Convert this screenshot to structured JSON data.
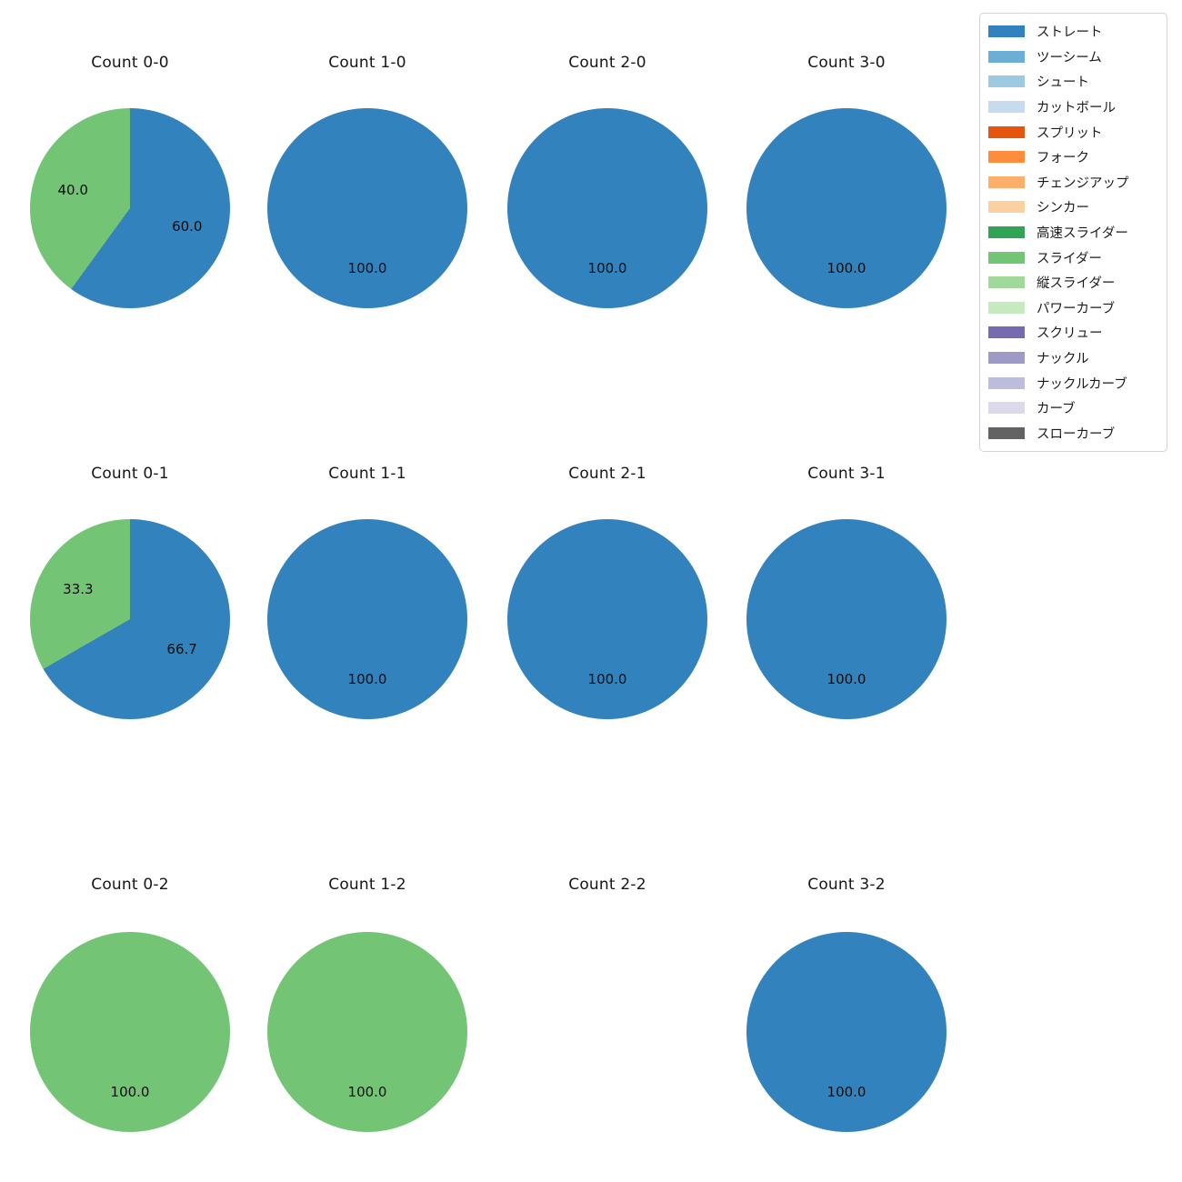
{
  "figure": {
    "background_color": "#ffffff",
    "grid": {
      "columns": 4,
      "rows": 3
    }
  },
  "legend": {
    "position": "upper right",
    "items": [
      {
        "label": "ストレート",
        "color": "#3182bd"
      },
      {
        "label": "ツーシーム",
        "color": "#6baed6"
      },
      {
        "label": "シュート",
        "color": "#9ecae1"
      },
      {
        "label": "カットボール",
        "color": "#c6dbef"
      },
      {
        "label": "スプリット",
        "color": "#e6550d"
      },
      {
        "label": "フォーク",
        "color": "#fd8d3c"
      },
      {
        "label": "チェンジアップ",
        "color": "#fdae6b"
      },
      {
        "label": "シンカー",
        "color": "#fdd0a2"
      },
      {
        "label": "高速スライダー",
        "color": "#31a354"
      },
      {
        "label": "スライダー",
        "color": "#74c476"
      },
      {
        "label": "縦スライダー",
        "color": "#a1d99b"
      },
      {
        "label": "パワーカーブ",
        "color": "#c7e9c0"
      },
      {
        "label": "スクリュー",
        "color": "#756bb1"
      },
      {
        "label": "ナックル",
        "color": "#9e9ac8"
      },
      {
        "label": "ナックルカーブ",
        "color": "#bcbddc"
      },
      {
        "label": "カーブ",
        "color": "#dadaeb"
      },
      {
        "label": "スローカーブ",
        "color": "#636363"
      }
    ]
  },
  "chart_data": [
    {
      "type": "pie",
      "title": "Count 0-0",
      "start_angle_deg": 90,
      "direction": "clockwise",
      "slices": [
        {
          "label": "ストレート",
          "value": 60.0,
          "pct_label": "60.0",
          "color": "#3182bd"
        },
        {
          "label": "スライダー",
          "value": 40.0,
          "pct_label": "40.0",
          "color": "#74c476"
        }
      ]
    },
    {
      "type": "pie",
      "title": "Count 1-0",
      "start_angle_deg": 90,
      "direction": "clockwise",
      "slices": [
        {
          "label": "ストレート",
          "value": 100.0,
          "pct_label": "100.0",
          "color": "#3182bd"
        }
      ]
    },
    {
      "type": "pie",
      "title": "Count 2-0",
      "start_angle_deg": 90,
      "direction": "clockwise",
      "slices": [
        {
          "label": "ストレート",
          "value": 100.0,
          "pct_label": "100.0",
          "color": "#3182bd"
        }
      ]
    },
    {
      "type": "pie",
      "title": "Count 3-0",
      "start_angle_deg": 90,
      "direction": "clockwise",
      "slices": [
        {
          "label": "ストレート",
          "value": 100.0,
          "pct_label": "100.0",
          "color": "#3182bd"
        }
      ]
    },
    {
      "type": "pie",
      "title": "Count 0-1",
      "start_angle_deg": 90,
      "direction": "clockwise",
      "slices": [
        {
          "label": "ストレート",
          "value": 66.7,
          "pct_label": "66.7",
          "color": "#3182bd"
        },
        {
          "label": "スライダー",
          "value": 33.3,
          "pct_label": "33.3",
          "color": "#74c476"
        }
      ]
    },
    {
      "type": "pie",
      "title": "Count 1-1",
      "start_angle_deg": 90,
      "direction": "clockwise",
      "slices": [
        {
          "label": "ストレート",
          "value": 100.0,
          "pct_label": "100.0",
          "color": "#3182bd"
        }
      ]
    },
    {
      "type": "pie",
      "title": "Count 2-1",
      "start_angle_deg": 90,
      "direction": "clockwise",
      "slices": [
        {
          "label": "ストレート",
          "value": 100.0,
          "pct_label": "100.0",
          "color": "#3182bd"
        }
      ]
    },
    {
      "type": "pie",
      "title": "Count 3-1",
      "start_angle_deg": 90,
      "direction": "clockwise",
      "slices": [
        {
          "label": "ストレート",
          "value": 100.0,
          "pct_label": "100.0",
          "color": "#3182bd"
        }
      ]
    },
    {
      "type": "pie",
      "title": "Count 0-2",
      "start_angle_deg": 90,
      "direction": "clockwise",
      "slices": [
        {
          "label": "スライダー",
          "value": 100.0,
          "pct_label": "100.0",
          "color": "#74c476"
        }
      ]
    },
    {
      "type": "pie",
      "title": "Count 1-2",
      "start_angle_deg": 90,
      "direction": "clockwise",
      "slices": [
        {
          "label": "スライダー",
          "value": 100.0,
          "pct_label": "100.0",
          "color": "#74c476"
        }
      ]
    },
    {
      "type": "pie",
      "title": "Count 2-2",
      "start_angle_deg": 90,
      "direction": "clockwise",
      "slices": []
    },
    {
      "type": "pie",
      "title": "Count 3-2",
      "start_angle_deg": 90,
      "direction": "clockwise",
      "slices": [
        {
          "label": "ストレート",
          "value": 100.0,
          "pct_label": "100.0",
          "color": "#3182bd"
        }
      ]
    }
  ]
}
